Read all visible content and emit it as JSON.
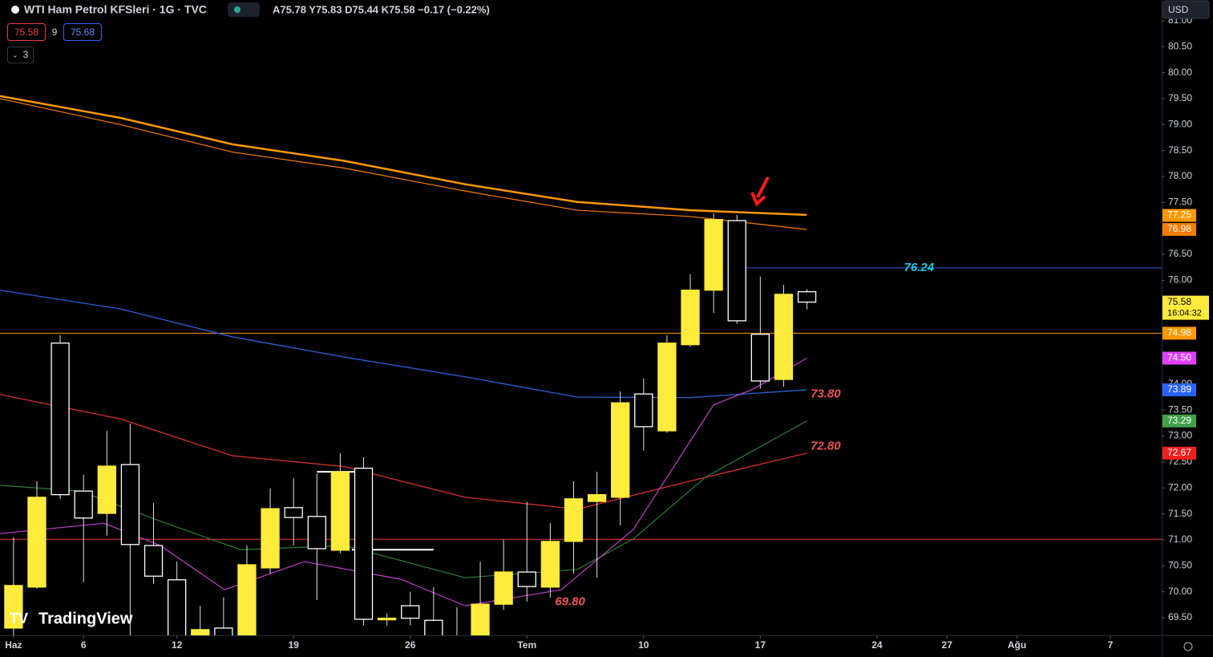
{
  "ui": {
    "title": "WTI Ham Petrol KFSleri · 1G · TVC",
    "ohlc": "A75.78 Y75.83 D75.44 K75.58 −0.17 (−0.22%)",
    "sell": "75.58",
    "spread": "9",
    "buy": "75.68",
    "collapse": "3",
    "currency": "USD",
    "brand": "TradingView"
  },
  "chart_data": {
    "type": "candlestick",
    "xlim": [
      -0.58,
      49.2
    ],
    "ylim": [
      69.16,
      81.4
    ],
    "xticks": [
      {
        "value": 0,
        "label": "Haz"
      },
      {
        "value": 3,
        "label": "6"
      },
      {
        "value": 7,
        "label": "12"
      },
      {
        "value": 12,
        "label": "19"
      },
      {
        "value": 17,
        "label": "26"
      },
      {
        "value": 22,
        "label": "Tem"
      },
      {
        "value": 27,
        "label": "10"
      },
      {
        "value": 32,
        "label": "17"
      },
      {
        "value": 37,
        "label": "24"
      },
      {
        "value": 40,
        "label": "27"
      },
      {
        "value": 43,
        "label": "Ağu"
      },
      {
        "value": 47,
        "label": "7"
      }
    ],
    "yticks": [
      {
        "value": 69.5,
        "label": "69.50"
      },
      {
        "value": 70,
        "label": "70.00"
      },
      {
        "value": 70.5,
        "label": "70.50"
      },
      {
        "value": 71,
        "label": "71.00"
      },
      {
        "value": 71.5,
        "label": "71.50"
      },
      {
        "value": 72,
        "label": "72.00"
      },
      {
        "value": 72.5,
        "label": "72.50"
      },
      {
        "value": 73,
        "label": "73.00"
      },
      {
        "value": 73.5,
        "label": "73.50"
      },
      {
        "value": 74,
        "label": "74.00"
      },
      {
        "value": 74.5,
        "label": "74.50"
      },
      {
        "value": 75,
        "label": "75.00"
      },
      {
        "value": 75.5,
        "label": "75.50"
      },
      {
        "value": 76,
        "label": "76.00"
      },
      {
        "value": 76.5,
        "label": "76.50"
      },
      {
        "value": 77,
        "label": "77.00"
      },
      {
        "value": 77.5,
        "label": "77.50"
      },
      {
        "value": 78,
        "label": "78.00"
      },
      {
        "value": 78.5,
        "label": "78.50"
      },
      {
        "value": 79,
        "label": "79.00"
      },
      {
        "value": 79.5,
        "label": "79.50"
      },
      {
        "value": 80,
        "label": "80.00"
      },
      {
        "value": 80.5,
        "label": "80.50"
      },
      {
        "value": 81,
        "label": "81.00"
      }
    ],
    "up_color": "#ffeb3b",
    "down_color": "#ffffff",
    "candles": {
      "x": [
        0,
        1,
        2,
        3,
        4,
        5,
        6,
        7,
        8,
        9,
        10,
        11,
        12,
        13,
        14,
        15,
        16,
        17,
        18,
        19,
        20,
        21,
        22,
        23,
        24,
        25,
        26,
        27,
        28,
        29,
        30,
        31,
        32,
        33,
        34
      ],
      "open": [
        69.3,
        70.09,
        74.79,
        71.94,
        71.51,
        72.45,
        70.89,
        70.23,
        69.16,
        69.3,
        69.1,
        70.46,
        71.62,
        71.45,
        70.8,
        72.38,
        69.46,
        69.73,
        69.45,
        69.1,
        69.1,
        69.76,
        70.38,
        70.09,
        70.97,
        71.74,
        71.82,
        73.81,
        73.1,
        74.76,
        75.81,
        77.15,
        74.96,
        74.09,
        75.78
      ],
      "high": [
        71.05,
        72.13,
        74.94,
        72.25,
        73.1,
        73.24,
        71.71,
        70.58,
        69.73,
        69.89,
        70.89,
        71.99,
        72.19,
        72.28,
        72.67,
        72.59,
        69.58,
        70.0,
        70.09,
        69.7,
        70.58,
        71.0,
        71.73,
        71.32,
        72.13,
        72.31,
        73.86,
        74.11,
        74.94,
        76.12,
        77.29,
        77.26,
        76.07,
        75.91,
        75.83
      ],
      "low": [
        69.1,
        70.06,
        71.79,
        70.18,
        71.08,
        69.1,
        70.15,
        69.0,
        69.1,
        69.0,
        69.0,
        70.35,
        70.89,
        69.84,
        70.74,
        69.35,
        69.35,
        69.35,
        69.0,
        69.0,
        69.0,
        69.65,
        69.81,
        69.89,
        70.35,
        70.27,
        71.28,
        72.72,
        73.06,
        74.72,
        75.37,
        75.16,
        73.91,
        73.95,
        75.44
      ],
      "close": [
        70.12,
        71.82,
        71.87,
        71.42,
        72.42,
        70.91,
        70.3,
        69.1,
        69.27,
        69.1,
        70.52,
        71.6,
        71.43,
        70.83,
        72.31,
        69.47,
        69.49,
        69.49,
        69.15,
        69.05,
        69.76,
        70.38,
        70.1,
        70.97,
        71.79,
        71.87,
        73.64,
        73.18,
        74.79,
        75.81,
        77.17,
        75.22,
        74.06,
        75.73,
        75.58
      ]
    },
    "series": [
      {
        "color": "#ff9800",
        "width": 2.5,
        "x": [
          -0.58,
          4.57,
          9.38,
          14.19,
          19.35,
          24.16,
          28.97,
          33.99
        ],
        "values": [
          79.55,
          79.13,
          78.62,
          78.3,
          77.85,
          77.51,
          77.35,
          77.26
        ]
      },
      {
        "color": "#f57c00",
        "width": 1.2,
        "x": [
          -0.58,
          4.57,
          9.38,
          14.19,
          19.35,
          24.16,
          28.97,
          33.99
        ],
        "values": [
          79.5,
          79.0,
          78.47,
          78.16,
          77.72,
          77.35,
          77.23,
          76.98
        ]
      },
      {
        "color": "#2f5ed8",
        "width": 1.3,
        "x": [
          -0.58,
          4.57,
          9.38,
          14.19,
          19.35,
          24.16,
          28.97,
          33.99
        ],
        "values": [
          75.81,
          75.45,
          74.91,
          74.52,
          74.14,
          73.75,
          73.74,
          73.89
        ]
      },
      {
        "color": "#d32f2f",
        "width": 1.3,
        "x": [
          -0.58,
          4.57,
          9.38,
          14.19,
          19.35,
          24.16,
          28.97,
          33.99
        ],
        "values": [
          73.8,
          73.33,
          72.62,
          72.41,
          71.82,
          71.59,
          72.13,
          72.67
        ]
      },
      {
        "color": "#2e7d32",
        "width": 1.2,
        "x": [
          -0.58,
          2.85,
          6.29,
          9.73,
          14.19,
          19.35,
          24.16,
          26.56,
          29.66,
          33.99
        ],
        "values": [
          72.05,
          71.94,
          71.36,
          70.81,
          70.89,
          70.27,
          70.43,
          71.02,
          72.21,
          73.29
        ]
      },
      {
        "color": "#c040c8",
        "width": 1.2,
        "x": [
          -0.58,
          3.88,
          6.29,
          9.04,
          12.47,
          16.6,
          19.35,
          23.47,
          26.56,
          30.0,
          31.72,
          33.99
        ],
        "values": [
          71.12,
          71.32,
          70.89,
          70.04,
          70.58,
          70.24,
          69.73,
          70.04,
          71.2,
          73.6,
          73.91,
          74.5
        ]
      }
    ],
    "hlines": [
      {
        "value": 74.98,
        "color": "#ff9800",
        "from": -0.58
      },
      {
        "value": 71.01,
        "color": "#e53935",
        "from": -0.58
      },
      {
        "value": 76.24,
        "color": "#2f5ed8",
        "from": 31
      },
      {
        "value": 70.81,
        "color": "#ffffff",
        "from": 14.5,
        "to": 18
      },
      {
        "value": 72.31,
        "color": "#ffffff",
        "from": 13,
        "to": 15
      }
    ],
    "annotations": [
      {
        "text": "76.24",
        "x": 38.8,
        "value": 76.24,
        "color": "#26c6da"
      },
      {
        "text": "73.80",
        "x": 34.8,
        "value": 73.8,
        "color": "#ef5350"
      },
      {
        "text": "72.80",
        "x": 34.8,
        "value": 72.8,
        "color": "#ef5350"
      },
      {
        "text": "69.80",
        "x": 23.85,
        "value": 69.8,
        "color": "#ef5350"
      }
    ],
    "price_labels": [
      {
        "value": 77.25,
        "label": "77.25",
        "color": "#ff9800"
      },
      {
        "value": 76.98,
        "label": "76.98",
        "color": "#f57c00"
      },
      {
        "value": 75.58,
        "label": "75.58",
        "sublabel": "16:04:32",
        "color": "#ffeb3b"
      },
      {
        "value": 74.98,
        "label": "74.98",
        "color": "#ff9800"
      },
      {
        "value": 74.5,
        "label": "74.50",
        "color": "#e040fb"
      },
      {
        "value": 73.89,
        "label": "73.89",
        "color": "#2962ff"
      },
      {
        "value": 73.29,
        "label": "73.29",
        "color": "#43a047"
      },
      {
        "value": 72.67,
        "label": "72.67",
        "color": "#f21e1e"
      }
    ]
  }
}
